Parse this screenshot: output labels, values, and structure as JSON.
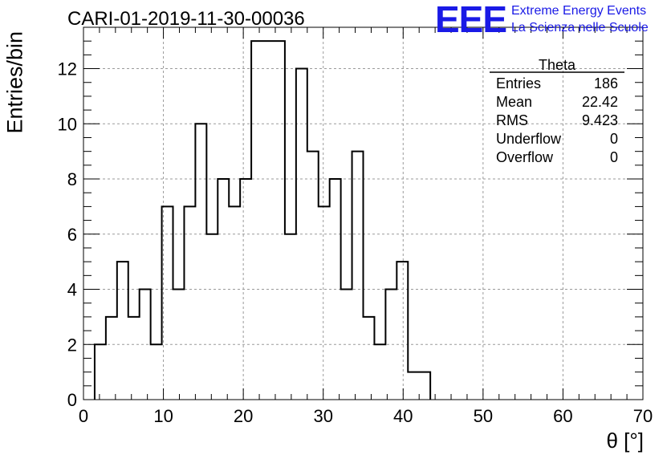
{
  "title": "CARI-01-2019-11-30-00036",
  "logo": {
    "mark": "EEE",
    "line1": "Extreme Energy Events",
    "line2": "La Scienza nelle Scuole",
    "color": "#1a1ae6"
  },
  "stats": {
    "name": "Theta",
    "rows": [
      {
        "label": "Entries",
        "value": "186"
      },
      {
        "label": "Mean",
        "value": "22.42"
      },
      {
        "label": "RMS",
        "value": "9.423"
      },
      {
        "label": "Underflow",
        "value": "0"
      },
      {
        "label": "Overflow",
        "value": "0"
      }
    ]
  },
  "chart_data": {
    "type": "bar",
    "style": "step-histogram",
    "title": "CARI-01-2019-11-30-00036",
    "xlabel": "θ [°]",
    "ylabel": "Entries/bin",
    "xlim": [
      0,
      70
    ],
    "ylim": [
      0,
      13.5
    ],
    "x_ticks": [
      0,
      10,
      20,
      30,
      40,
      50,
      60,
      70
    ],
    "y_ticks": [
      0,
      2,
      4,
      6,
      8,
      10,
      12
    ],
    "grid": true,
    "bin_width": 1.4,
    "bin_edges_start": 1.4,
    "values": [
      2,
      3,
      5,
      3,
      4,
      2,
      7,
      4,
      7,
      10,
      6,
      8,
      7,
      8,
      13,
      13,
      13,
      6,
      12,
      9,
      7,
      8,
      4,
      9,
      3,
      2,
      4,
      5,
      1,
      1
    ],
    "line_color": "#000000"
  }
}
